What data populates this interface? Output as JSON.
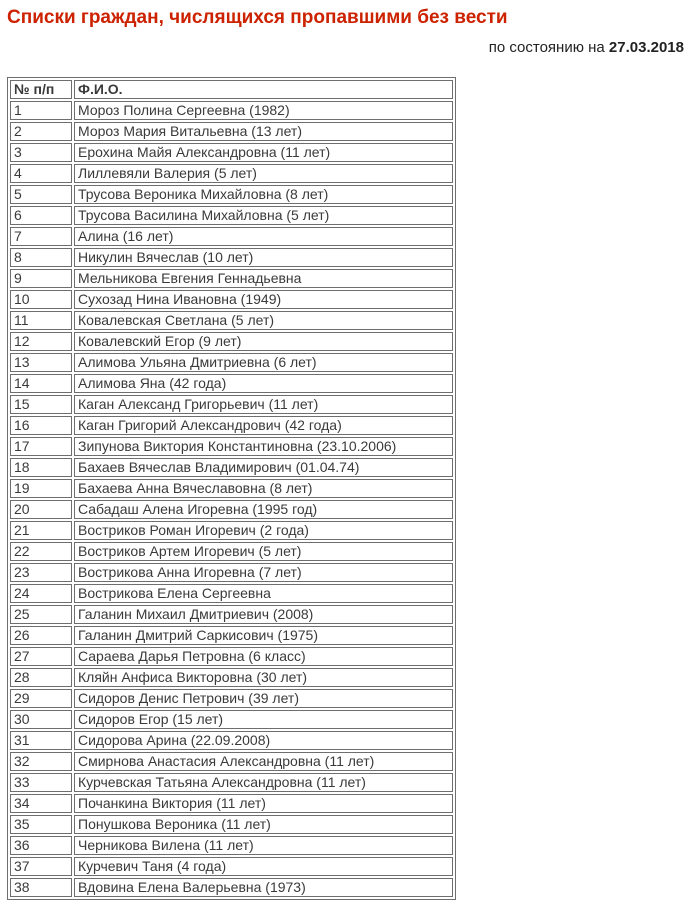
{
  "page": {
    "title": "Списки граждан, числящихся пропавшими без вести",
    "date_prefix": "по состоянию на ",
    "date_value": "27.03.2018"
  },
  "colors": {
    "title": "#cc2200",
    "body_text": "#3a3a3a",
    "table_border": "#6e6e6e",
    "background": "#ffffff"
  },
  "table": {
    "headers": [
      "№ п/п",
      "Ф.И.О."
    ],
    "rows": [
      {
        "num": "1",
        "name": "Мороз Полина Сергеевна (1982)"
      },
      {
        "num": "2",
        "name": "Мороз Мария Витальевна (13 лет)"
      },
      {
        "num": "3",
        "name": "Ерохина Майя Александровна (11 лет)"
      },
      {
        "num": "4",
        "name": "Лиллевяли Валерия (5 лет)"
      },
      {
        "num": "5",
        "name": "Трусова Вероника Михайловна (8 лет)"
      },
      {
        "num": "6",
        "name": "Трусова Василина Михайловна (5 лет)"
      },
      {
        "num": "7",
        "name": "Алина (16 лет)"
      },
      {
        "num": "8",
        "name": "Никулин Вячеслав (10 лет)"
      },
      {
        "num": "9",
        "name": "Мельникова Евгения Геннадьевна"
      },
      {
        "num": "10",
        "name": "Сухозад Нина Ивановна (1949)"
      },
      {
        "num": "11",
        "name": "Ковалевская Светлана (5 лет)"
      },
      {
        "num": "12",
        "name": "Ковалевский Егор (9 лет)"
      },
      {
        "num": "13",
        "name": "Алимова Ульяна Дмитриевна (6 лет)"
      },
      {
        "num": "14",
        "name": "Алимова Яна (42 года)"
      },
      {
        "num": "15",
        "name": "Каган Александ Григорьевич (11 лет)"
      },
      {
        "num": "16",
        "name": "Каган Григорий Александрович (42 года)"
      },
      {
        "num": "17",
        "name": "Зипунова Виктория Константиновна (23.10.2006)"
      },
      {
        "num": "18",
        "name": "Бахаев Вячеслав Владимирович (01.04.74)"
      },
      {
        "num": "19",
        "name": "Бахаева Анна Вячеславовна (8 лет)"
      },
      {
        "num": "20",
        "name": "Сабадаш Алена Игоревна (1995 год)"
      },
      {
        "num": "21",
        "name": "Востриков Роман Игоревич (2 года)"
      },
      {
        "num": "22",
        "name": "Востриков Артем Игоревич (5 лет)"
      },
      {
        "num": "23",
        "name": "Вострикова Анна Игоревна (7 лет)"
      },
      {
        "num": "24",
        "name": "Вострикова Елена Сергеевна"
      },
      {
        "num": "25",
        "name": "Галанин Михаил Дмитриевич (2008)"
      },
      {
        "num": "26",
        "name": "Галанин Дмитрий Саркисович (1975)"
      },
      {
        "num": "27",
        "name": "Сараева Дарья Петровна (6 класс)"
      },
      {
        "num": "28",
        "name": "Кляйн Анфиса Викторовна (30 лет)"
      },
      {
        "num": "29",
        "name": "Сидоров Денис Петрович (39 лет)"
      },
      {
        "num": "30",
        "name": "Сидоров Егор (15 лет)"
      },
      {
        "num": "31",
        "name": "Сидорова Арина (22.09.2008)"
      },
      {
        "num": "32",
        "name": "Смирнова Анастасия Александровна (11 лет)"
      },
      {
        "num": "33",
        "name": "Курчевская Татьяна Александровна (11 лет)"
      },
      {
        "num": "34",
        "name": "Почанкина Виктория (11 лет)"
      },
      {
        "num": "35",
        "name": "Понушкова Вероника (11 лет)"
      },
      {
        "num": "36",
        "name": "Черникова Вилена (11 лет)"
      },
      {
        "num": "37",
        "name": "Курчевич Таня (4 года)"
      },
      {
        "num": "38",
        "name": "Вдовина Елена Валерьевна (1973)"
      }
    ]
  }
}
